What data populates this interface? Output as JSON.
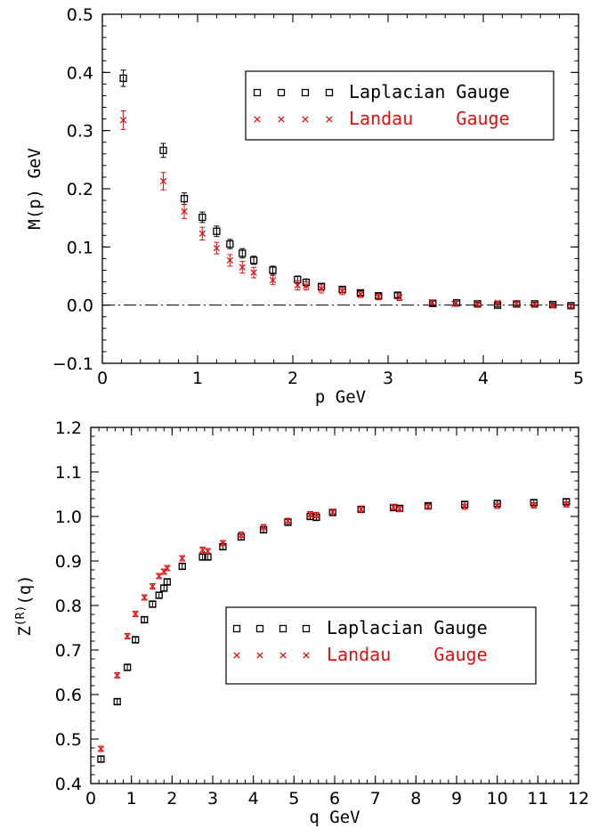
{
  "chart_data": [
    {
      "type": "scatter",
      "xlabel": "p GeV",
      "ylabel": "M(p) GeV",
      "xlim": [
        0,
        5
      ],
      "ylim": [
        -0.1,
        0.5
      ],
      "xticks": [
        "0",
        "1",
        "2",
        "3",
        "4",
        "5"
      ],
      "yticks": [
        "−0.1",
        "0.0",
        "0.1",
        "0.2",
        "0.3",
        "0.4",
        "0.5"
      ],
      "reference_line": {
        "y": 0.0,
        "style": "dash-dot"
      },
      "legend": {
        "placement": "top-right",
        "label_a": "Laplacian Gauge",
        "label_b": "Landau    Gauge"
      },
      "series": [
        {
          "name": "Laplacian Gauge",
          "marker": "square",
          "color": "#000000",
          "x": [
            0.22,
            0.64,
            0.86,
            1.05,
            1.2,
            1.34,
            1.47,
            1.59,
            1.79,
            2.05,
            2.14,
            2.3,
            2.52,
            2.71,
            2.9,
            3.1,
            3.47,
            3.72,
            3.94,
            4.15,
            4.35,
            4.54,
            4.73,
            4.92
          ],
          "y": [
            0.39,
            0.266,
            0.183,
            0.151,
            0.127,
            0.105,
            0.089,
            0.077,
            0.06,
            0.044,
            0.039,
            0.032,
            0.027,
            0.021,
            0.016,
            0.017,
            0.003,
            0.004,
            0.002,
            0.0,
            0.002,
            0.002,
            0.001,
            -0.001
          ],
          "err": [
            0.014,
            0.012,
            0.01,
            0.009,
            0.009,
            0.008,
            0.008,
            0.007,
            0.007,
            0.006,
            0.006,
            0.005,
            0.005,
            0.004,
            0.004,
            0.004,
            0.004,
            0.003,
            0.003,
            0.003,
            0.003,
            0.003,
            0.003,
            0.003
          ]
        },
        {
          "name": "Landau    Gauge",
          "marker": "x",
          "color": "#e01010",
          "x": [
            0.22,
            0.64,
            0.86,
            1.05,
            1.2,
            1.34,
            1.47,
            1.59,
            1.79,
            2.05,
            2.14,
            2.3,
            2.52,
            2.71,
            2.9,
            3.12,
            3.46,
            3.7,
            3.94,
            4.15,
            4.35,
            4.54,
            4.73,
            4.92
          ],
          "y": [
            0.318,
            0.213,
            0.161,
            0.123,
            0.098,
            0.077,
            0.065,
            0.056,
            0.043,
            0.034,
            0.033,
            0.028,
            0.024,
            0.018,
            0.014,
            0.013,
            0.005,
            0.002,
            0.001,
            0.004,
            0.003,
            0.001,
            -0.001,
            -0.002
          ],
          "err": [
            0.016,
            0.015,
            0.012,
            0.011,
            0.01,
            0.01,
            0.01,
            0.009,
            0.008,
            0.008,
            0.007,
            0.007,
            0.006,
            0.005,
            0.005,
            0.005,
            0.004,
            0.004,
            0.003,
            0.003,
            0.003,
            0.003,
            0.003,
            0.003
          ]
        }
      ]
    },
    {
      "type": "scatter",
      "xlabel": "q GeV",
      "ylabel_main": "Z",
      "ylabel_sup": "(R)",
      "ylabel_tail": "(q)",
      "xlim": [
        0,
        12
      ],
      "ylim": [
        0.4,
        1.2
      ],
      "xticks": [
        "0",
        "1",
        "2",
        "3",
        "4",
        "5",
        "6",
        "7",
        "8",
        "9",
        "10",
        "11",
        "12"
      ],
      "yticks": [
        "0.4",
        "0.5",
        "0.6",
        "0.7",
        "0.8",
        "0.9",
        "1.0",
        "1.1",
        "1.2"
      ],
      "legend": {
        "placement": "bottom-right",
        "label_a": "Laplacian Gauge",
        "label_b": "Landau    Gauge"
      },
      "series": [
        {
          "name": "Laplacian Gauge",
          "marker": "square",
          "color": "#000000",
          "x": [
            0.25,
            0.65,
            0.9,
            1.1,
            1.32,
            1.52,
            1.68,
            1.8,
            1.88,
            2.25,
            2.75,
            2.88,
            3.25,
            3.7,
            4.25,
            4.85,
            5.4,
            5.55,
            5.95,
            6.65,
            7.45,
            7.6,
            8.3,
            9.2,
            10.0,
            10.9,
            11.7
          ],
          "y": [
            0.455,
            0.584,
            0.661,
            0.723,
            0.768,
            0.803,
            0.823,
            0.839,
            0.853,
            0.888,
            0.909,
            0.909,
            0.932,
            0.954,
            0.97,
            0.987,
            1.0,
            0.998,
            1.009,
            1.016,
            1.02,
            1.018,
            1.024,
            1.027,
            1.029,
            1.031,
            1.033
          ]
        },
        {
          "name": "Landau    Gauge",
          "marker": "x",
          "color": "#e01010",
          "x": [
            0.25,
            0.65,
            0.9,
            1.1,
            1.32,
            1.52,
            1.68,
            1.8,
            1.88,
            2.25,
            2.75,
            2.88,
            3.25,
            3.7,
            4.25,
            4.85,
            5.4,
            5.55,
            5.95,
            6.65,
            7.45,
            7.6,
            8.3,
            9.2,
            10.0,
            10.9,
            11.7
          ],
          "y": [
            0.478,
            0.643,
            0.731,
            0.781,
            0.818,
            0.843,
            0.866,
            0.876,
            0.884,
            0.906,
            0.925,
            0.922,
            0.94,
            0.959,
            0.976,
            0.99,
            1.005,
            1.003,
            1.01,
            1.016,
            1.021,
            1.017,
            1.022,
            1.022,
            1.024,
            1.025,
            1.027
          ]
        }
      ]
    }
  ]
}
